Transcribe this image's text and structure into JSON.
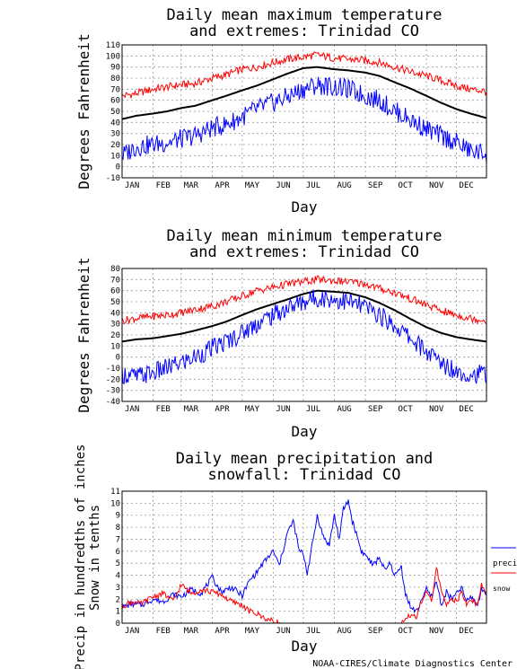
{
  "credit": "NOAA-CIRES/Climate Diagnostics Center",
  "chart_data": [
    {
      "type": "line",
      "title_lines": [
        "Daily mean maximum temperature",
        "and extremes: Trinidad CO"
      ],
      "xlabel": "Day",
      "ylabel": "Degrees Fahrenheit",
      "ylim": [
        -10,
        110
      ],
      "yticks": [
        -10,
        0,
        10,
        20,
        30,
        40,
        50,
        60,
        70,
        80,
        90,
        100,
        110
      ],
      "xticks": [
        "JAN",
        "FEB",
        "MAR",
        "APR",
        "MAY",
        "JUN",
        "JUL",
        "AUG",
        "SEP",
        "OCT",
        "NOV",
        "DEC"
      ],
      "grid": true,
      "series": [
        {
          "color": "#ff0000",
          "x": [
            1,
            15,
            32,
            46,
            60,
            74,
            91,
            105,
            121,
            135,
            152,
            166,
            182,
            196,
            213,
            227,
            244,
            258,
            274,
            288,
            305,
            319,
            335,
            349,
            365
          ],
          "y": [
            64,
            66,
            70,
            72,
            74,
            75,
            80,
            83,
            88,
            90,
            94,
            97,
            99,
            101,
            98,
            97,
            96,
            94,
            90,
            86,
            82,
            78,
            73,
            70,
            68
          ]
        },
        {
          "color": "#000000",
          "x": [
            1,
            15,
            32,
            46,
            60,
            74,
            91,
            105,
            121,
            135,
            152,
            166,
            182,
            196,
            213,
            227,
            244,
            258,
            274,
            288,
            305,
            319,
            335,
            349,
            365
          ],
          "y": [
            43,
            46,
            48,
            50,
            53,
            55,
            60,
            64,
            69,
            73,
            79,
            84,
            89,
            90,
            88,
            87,
            85,
            82,
            76,
            71,
            64,
            58,
            52,
            48,
            44
          ]
        },
        {
          "color": "#0000ff",
          "x": [
            1,
            15,
            32,
            46,
            60,
            74,
            91,
            105,
            121,
            135,
            152,
            166,
            182,
            196,
            213,
            227,
            244,
            258,
            274,
            288,
            305,
            319,
            335,
            349,
            365
          ],
          "y": [
            10,
            18,
            20,
            22,
            25,
            28,
            35,
            38,
            45,
            52,
            58,
            63,
            70,
            74,
            72,
            70,
            64,
            60,
            50,
            43,
            34,
            28,
            22,
            14,
            12
          ]
        }
      ]
    },
    {
      "type": "line",
      "title_lines": [
        "Daily mean minimum temperature",
        "and extremes: Trinidad CO"
      ],
      "xlabel": "Day",
      "ylabel": "Degrees Fahrenheit",
      "ylim": [
        -40,
        80
      ],
      "yticks": [
        -40,
        -30,
        -20,
        -10,
        0,
        10,
        20,
        30,
        40,
        50,
        60,
        70,
        80
      ],
      "xticks": [
        "JAN",
        "FEB",
        "MAR",
        "APR",
        "MAY",
        "JUN",
        "JUL",
        "AUG",
        "SEP",
        "OCT",
        "NOV",
        "DEC"
      ],
      "grid": true,
      "series": [
        {
          "color": "#ff0000",
          "x": [
            1,
            15,
            32,
            46,
            60,
            74,
            91,
            105,
            121,
            135,
            152,
            166,
            182,
            196,
            213,
            227,
            244,
            258,
            274,
            288,
            305,
            319,
            335,
            349,
            365
          ],
          "y": [
            33,
            35,
            37,
            38,
            40,
            43,
            46,
            50,
            55,
            60,
            63,
            66,
            68,
            70,
            69,
            68,
            66,
            62,
            58,
            53,
            47,
            42,
            38,
            35,
            33
          ]
        },
        {
          "color": "#000000",
          "x": [
            1,
            15,
            32,
            46,
            60,
            74,
            91,
            105,
            121,
            135,
            152,
            166,
            182,
            196,
            213,
            227,
            244,
            258,
            274,
            288,
            305,
            319,
            335,
            349,
            365
          ],
          "y": [
            14,
            16,
            17,
            19,
            21,
            24,
            28,
            32,
            38,
            43,
            48,
            52,
            57,
            60,
            59,
            58,
            54,
            49,
            42,
            35,
            27,
            22,
            18,
            16,
            14
          ]
        },
        {
          "color": "#0000ff",
          "x": [
            1,
            15,
            32,
            46,
            60,
            74,
            91,
            105,
            121,
            135,
            152,
            166,
            182,
            196,
            213,
            227,
            244,
            258,
            274,
            288,
            305,
            319,
            335,
            349,
            365
          ],
          "y": [
            -15,
            -18,
            -14,
            -10,
            -5,
            0,
            8,
            14,
            22,
            30,
            38,
            44,
            50,
            54,
            52,
            50,
            45,
            38,
            28,
            18,
            5,
            -5,
            -12,
            -16,
            -15
          ]
        }
      ]
    },
    {
      "type": "line",
      "title_lines": [
        "Daily mean precipitation and",
        "snowfall: Trinidad CO"
      ],
      "xlabel": "Day",
      "ylabel_lines": [
        "Precip in hundredths of inches",
        "Snow in tenths"
      ],
      "ylim": [
        0,
        11
      ],
      "yticks": [
        0,
        1,
        2,
        3,
        4,
        5,
        6,
        7,
        8,
        9,
        10,
        11
      ],
      "xticks": [
        "JAN",
        "FEB",
        "MAR",
        "APR",
        "MAY",
        "JUN",
        "JUL",
        "AUG",
        "SEP",
        "OCT",
        "NOV",
        "DEC"
      ],
      "grid": true,
      "legend": {
        "placement": "right",
        "entries": [
          {
            "label": "precip",
            "color": "#0000ff"
          },
          {
            "label": "snow",
            "color": "#ff0000"
          }
        ]
      },
      "series": [
        {
          "name": "precip",
          "color": "#0000ff",
          "x": [
            1,
            10,
            20,
            32,
            42,
            52,
            60,
            70,
            80,
            91,
            100,
            110,
            121,
            128,
            135,
            142,
            152,
            158,
            166,
            172,
            178,
            182,
            186,
            192,
            196,
            202,
            208,
            213,
            218,
            222,
            227,
            231,
            235,
            240,
            246,
            252,
            258,
            264,
            268,
            274,
            280,
            284,
            290,
            296,
            300,
            305,
            310,
            315,
            320,
            325,
            330,
            335,
            340,
            345,
            350,
            356,
            360,
            365
          ],
          "y": [
            1.3,
            1.6,
            1.5,
            2.0,
            1.8,
            2.4,
            2.2,
            2.8,
            2.5,
            3.8,
            2.6,
            3.0,
            2.3,
            3.5,
            4.2,
            5.0,
            6.0,
            4.8,
            7.5,
            8.5,
            6.0,
            5.8,
            4.2,
            7.0,
            9.0,
            7.2,
            6.5,
            9.0,
            7.0,
            9.5,
            10.2,
            8.5,
            7.5,
            6.0,
            5.5,
            4.8,
            5.5,
            4.3,
            5.0,
            4.0,
            4.7,
            2.5,
            1.2,
            1.0,
            2.0,
            2.8,
            2.2,
            3.5,
            1.5,
            2.6,
            2.0,
            2.4,
            3.0,
            1.8,
            2.2,
            1.5,
            2.8,
            2.6
          ]
        },
        {
          "name": "snow",
          "color": "#ff0000",
          "x": [
            1,
            10,
            20,
            32,
            42,
            52,
            60,
            70,
            80,
            91,
            100,
            110,
            121,
            128,
            135,
            142,
            150,
            160,
            170,
            180,
            190,
            200,
            210,
            220,
            230,
            240,
            250,
            260,
            270,
            275,
            280,
            285,
            290,
            295,
            300,
            305,
            310,
            315,
            320,
            325,
            330,
            335,
            340,
            345,
            350,
            356,
            360,
            365
          ],
          "y": [
            1.4,
            1.8,
            1.6,
            2.2,
            2.5,
            1.8,
            3.2,
            2.5,
            2.8,
            2.6,
            2.4,
            1.8,
            1.5,
            1.0,
            0.8,
            0.5,
            0.2,
            0,
            0,
            0,
            0,
            0,
            0,
            0,
            0,
            0,
            0,
            0,
            0,
            0,
            0,
            0.3,
            0.8,
            0.5,
            1.8,
            2.5,
            1.8,
            4.7,
            2.5,
            1.5,
            2.2,
            1.8,
            2.5,
            1.6,
            2.0,
            1.5,
            3.2,
            2.4
          ]
        }
      ]
    }
  ]
}
